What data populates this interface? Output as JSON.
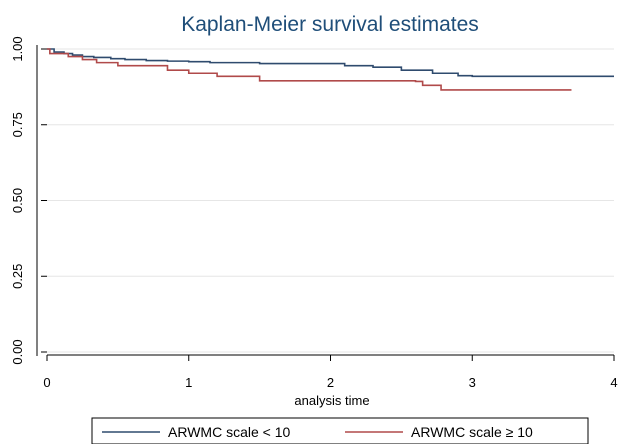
{
  "chart_data": {
    "type": "line",
    "title": "Kaplan-Meier survival estimates",
    "xlabel": "analysis time",
    "ylabel": "",
    "xlim": [
      0,
      4
    ],
    "ylim": [
      0,
      1
    ],
    "x_ticks": [
      "0",
      "1",
      "2",
      "3",
      "4"
    ],
    "y_ticks": [
      "0.00",
      "0.25",
      "0.50",
      "0.75",
      "1.00"
    ],
    "grid": true,
    "legend_position": "bottom",
    "series": [
      {
        "name": "ARWMC scale < 10",
        "color": "#2f4b6e",
        "x": [
          0,
          0.05,
          0.12,
          0.18,
          0.25,
          0.33,
          0.45,
          0.55,
          0.7,
          0.85,
          1.0,
          1.15,
          1.5,
          2.1,
          2.3,
          2.5,
          2.72,
          2.9,
          3.0,
          4.0
        ],
        "y": [
          1.0,
          0.99,
          0.985,
          0.98,
          0.975,
          0.972,
          0.968,
          0.965,
          0.962,
          0.96,
          0.958,
          0.955,
          0.952,
          0.945,
          0.94,
          0.93,
          0.92,
          0.912,
          0.91,
          0.91
        ]
      },
      {
        "name": "ARWMC scale ≥ 10",
        "color": "#b04a4a",
        "x": [
          0,
          0.02,
          0.15,
          0.25,
          0.35,
          0.5,
          0.85,
          1.0,
          1.2,
          1.5,
          2.6,
          2.65,
          2.78,
          3.7
        ],
        "y": [
          1.0,
          0.985,
          0.975,
          0.965,
          0.955,
          0.945,
          0.93,
          0.92,
          0.91,
          0.895,
          0.893,
          0.88,
          0.865,
          0.865
        ]
      }
    ]
  }
}
